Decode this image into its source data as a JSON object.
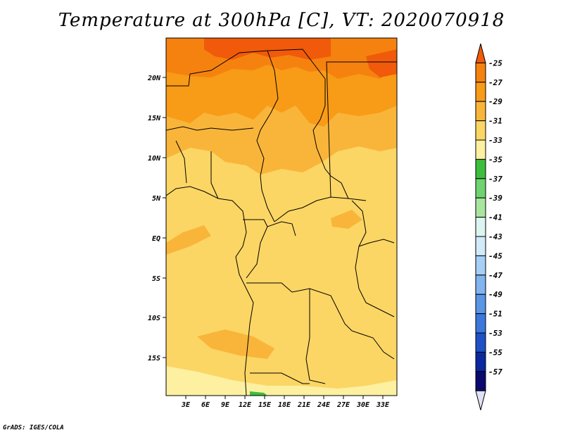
{
  "title": "Temperature at 300hPa [C], VT: 2020070918",
  "credit": "GrADS: IGES/COLA",
  "map": {
    "region": "Central Africa",
    "lat_labels": [
      "20N",
      "15N",
      "10N",
      "5N",
      "EQ",
      "5S",
      "10S",
      "15S"
    ],
    "lon_labels": [
      "3E",
      "6E",
      "9E",
      "12E",
      "15E",
      "18E",
      "21E",
      "24E",
      "27E",
      "30E",
      "33E"
    ],
    "field": "Temperature at 300hPa",
    "units": "C"
  },
  "colorbar": {
    "labels": [
      "-25",
      "-27",
      "-29",
      "-31",
      "-33",
      "-35",
      "-37",
      "-39",
      "-41",
      "-43",
      "-45",
      "-47",
      "-49",
      "-51",
      "-53",
      "-55",
      "-57"
    ],
    "colors": [
      "#f05a0a",
      "#f5820f",
      "#f89b16",
      "#f9b53a",
      "#fbd664",
      "#fdf0a0",
      "#3cbe3c",
      "#6fd36f",
      "#a8e6a0",
      "#dcf5f0",
      "#d2ebfb",
      "#a6cff5",
      "#82b4f0",
      "#5a96e6",
      "#3c78dc",
      "#1e50c8",
      "#0a28a0",
      "#0a0a6e",
      "#e0e0f8"
    ]
  }
}
